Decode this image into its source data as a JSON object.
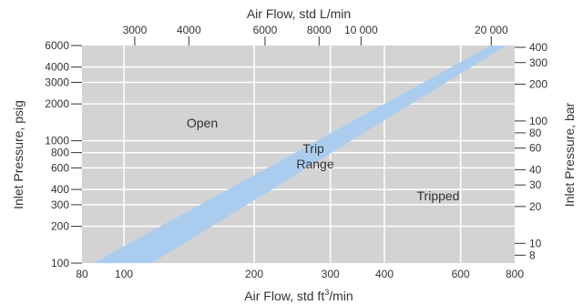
{
  "chart_data": {
    "type": "area",
    "x_scale": "log",
    "y_scale": "log",
    "grid": true,
    "bottom_axis": {
      "label_text": "Air Flow, std ft",
      "label_superscript": "3",
      "label_suffix": "/min",
      "unit": "std ft3/min",
      "range": [
        80,
        800
      ],
      "ticks": [
        80,
        100,
        200,
        300,
        400,
        600,
        800
      ],
      "tick_labels": [
        "80",
        "100",
        "200",
        "300",
        "400",
        "600",
        "800"
      ]
    },
    "top_axis": {
      "label": "Air Flow, std L/min",
      "unit": "std L/min",
      "ticks": [
        3000,
        4000,
        6000,
        8000,
        10000,
        20000
      ],
      "tick_labels": [
        "3000",
        "4000",
        "6000",
        "8000",
        "10 000",
        "20 000"
      ]
    },
    "left_axis": {
      "label": "Inlet Pressure, psig",
      "unit": "psig",
      "range": [
        100,
        6000
      ],
      "ticks": [
        100,
        200,
        300,
        400,
        600,
        800,
        1000,
        2000,
        3000,
        4000,
        6000
      ],
      "tick_labels": [
        "100",
        "200",
        "300",
        "400",
        "600",
        "800",
        "1000",
        "2000",
        "3000",
        "4000",
        "6000"
      ]
    },
    "right_axis": {
      "label": "Inlet Pressure, bar",
      "unit": "bar",
      "ticks": [
        8,
        10,
        20,
        30,
        40,
        60,
        80,
        100,
        200,
        300,
        400
      ],
      "tick_labels": [
        "8",
        "10",
        "20",
        "30",
        "40",
        "60",
        "80",
        "100",
        "200",
        "300",
        "400"
      ]
    },
    "conversions": {
      "L_per_min_per_ft3_per_min": 28.3168,
      "psi_per_bar": 14.5038
    },
    "band": {
      "name": "Trip Range",
      "label_lines": [
        "Trip",
        "Range"
      ],
      "lower_edge": [
        {
          "x": 116,
          "y": 100
        },
        {
          "x": 765,
          "y": 6000
        }
      ],
      "upper_edge": [
        {
          "x": 85,
          "y": 100
        },
        {
          "x": 705,
          "y": 6000
        }
      ]
    },
    "regions": [
      {
        "name": "Open",
        "label": "Open"
      },
      {
        "name": "Tripped",
        "label": "Tripped"
      }
    ],
    "colors": {
      "plot_background": "#d3d3d3",
      "grid": "#ffffff",
      "band": "#aacdef",
      "text": "#333333",
      "tick": "#333333"
    }
  }
}
